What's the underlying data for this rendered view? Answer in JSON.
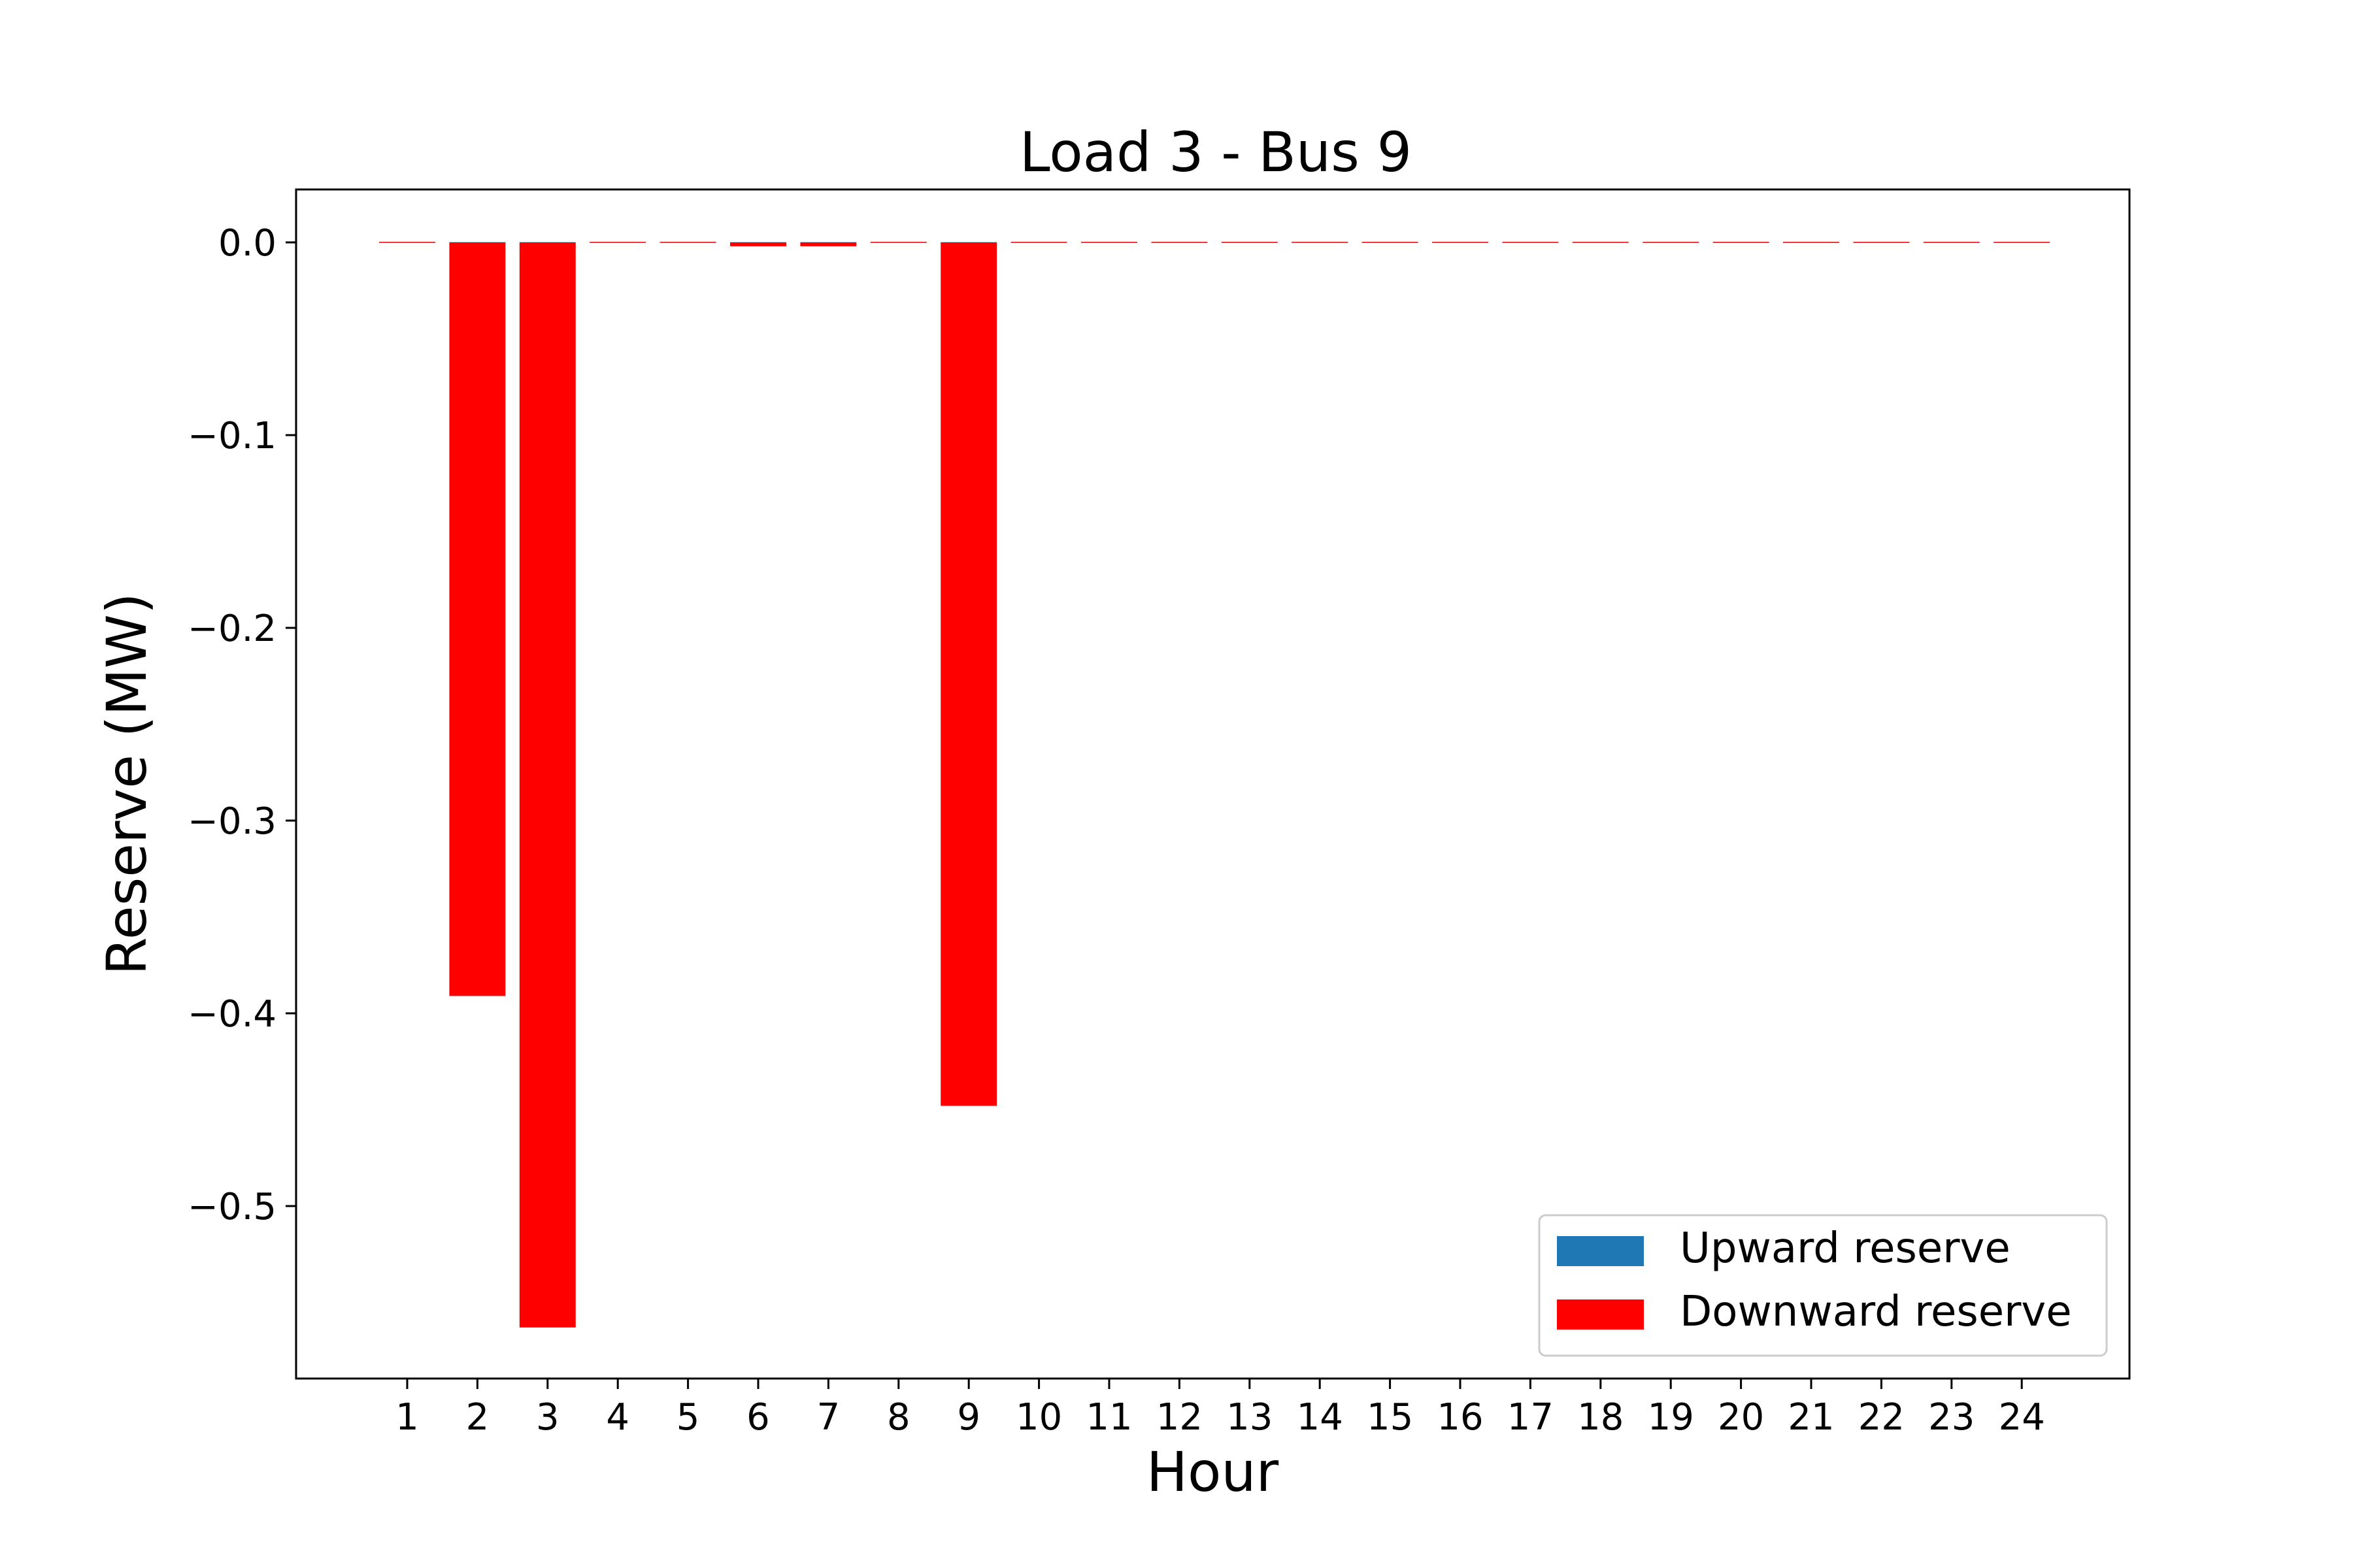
{
  "chart_data": {
    "type": "bar",
    "title": "Load 3 - Bus 9",
    "xlabel": "Hour",
    "ylabel": "Reserve (MW)",
    "categories": [
      "1",
      "2",
      "3",
      "4",
      "5",
      "6",
      "7",
      "8",
      "9",
      "10",
      "11",
      "12",
      "13",
      "14",
      "15",
      "16",
      "17",
      "18",
      "19",
      "20",
      "21",
      "22",
      "23",
      "24"
    ],
    "series": [
      {
        "name": "Upward reserve",
        "color": "#1f77b4",
        "values": [
          0,
          0,
          0,
          0,
          0,
          0,
          0,
          0,
          0,
          0,
          0,
          0,
          0,
          0,
          0,
          0,
          0,
          0,
          0,
          0,
          0,
          0,
          0,
          0
        ]
      },
      {
        "name": "Downward reserve",
        "color": "#ff0000",
        "values": [
          0,
          -0.391,
          -0.563,
          0,
          0,
          -0.002,
          -0.002,
          0,
          -0.448,
          0,
          0,
          0,
          0,
          0,
          0,
          0,
          0,
          0,
          0,
          0,
          0,
          0,
          0,
          0
        ]
      }
    ],
    "ylim": [
      -0.59,
      0.028
    ],
    "yticks": [
      0.0,
      -0.1,
      -0.2,
      -0.3,
      -0.4,
      -0.5
    ],
    "ytick_labels": [
      "0.0",
      "−0.1",
      "−0.2",
      "−0.3",
      "−0.4",
      "−0.5"
    ],
    "grid": false,
    "legend_position": "lower-right"
  }
}
